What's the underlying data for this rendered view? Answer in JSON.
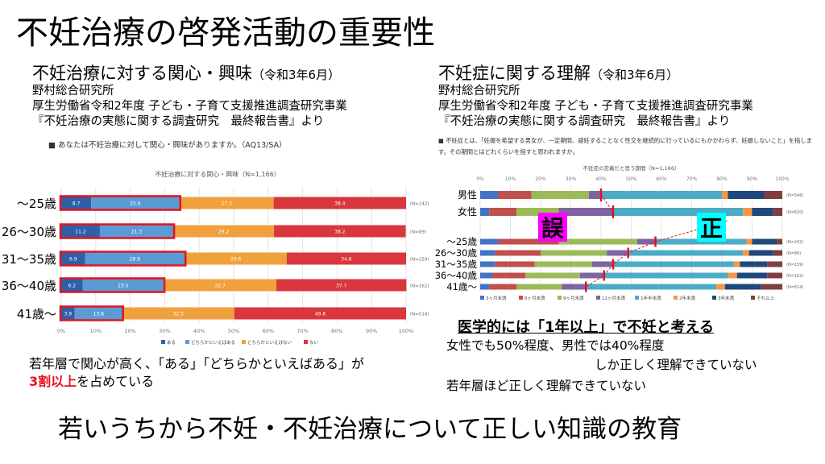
{
  "slide_title": "不妊治療の啓発活動の重要性",
  "left": {
    "title": "不妊治療に対する関心・興味",
    "title_date": "（令和3年6月）",
    "source": [
      "野村総合研究所",
      "厚生労働省令和2年度 子ども・子育て支援推進調査研究事業",
      "『不妊治療の実態に関する調査研究　最終報告書』より"
    ],
    "question": "■ あなたは不妊治療に対して関心・興味がありますか。（AQ13/SA）",
    "comment_pre": "若年層で関心が高く、「ある」「どちらかといえばある」が",
    "comment_red": "3割以上",
    "comment_post": "を占めている"
  },
  "right": {
    "title": "不妊症に関する理解",
    "title_date": "（令和3年6月）",
    "source": [
      "野村総合研究所",
      "厚生労働省令和2年度 子ども・子育て支援推進調査研究事業",
      "『不妊治療の実態に関する調査研究　最終報告書』より"
    ],
    "question_line1": "■ 不妊症とは、「妊娠を希望する男女が、一定期間、避妊することなく性交を継続的に行っているにもかかわらず、妊娠しないこと」を指しま",
    "question_line2": "す。その期間とはどれくらいを指すと思われますか。",
    "wrong_label": "誤",
    "correct_label": "正",
    "conclusion": "医学的には「1年以上」で不妊と考える",
    "text1": "女性でも50%程度、男性では40%程度",
    "text2": "しか正しく理解できていない",
    "text3": "若年層ほど正しく理解できていない"
  },
  "bottom_message": "若いうちから不妊・不妊治療について正しい知識の教育",
  "colors": {
    "interest": [
      "#2e5fa8",
      "#5b9bd5",
      "#f0a03c",
      "#d9363e"
    ],
    "period": [
      "#4472c4",
      "#c0504d",
      "#9bbb59",
      "#8064a2",
      "#4bacc6",
      "#f79646",
      "#1f497d",
      "#7f3f3f"
    ],
    "highlight_red": "#e6121d",
    "magenta": "#ff00ff",
    "cyan": "#00ffff"
  },
  "chart_data": [
    {
      "type": "bar",
      "stacked": true,
      "orientation": "horizontal",
      "title": "不妊治療に対する関心・興味（N=1,166）",
      "categories": [
        "～25歳",
        "26～30歳",
        "31～35歳",
        "36～40歳",
        "41歳～"
      ],
      "n_labels": [
        "(N=242)",
        "(N=89)",
        "(N=159)",
        "(N=162)",
        "(N=514)"
      ],
      "series": [
        {
          "name": "ある",
          "values": [
            8.7,
            11.2,
            6.9,
            6.2,
            3.9
          ]
        },
        {
          "name": "どちらかといえばある",
          "values": [
            25.6,
            21.3,
            28.9,
            23.5,
            13.8
          ]
        },
        {
          "name": "どちらかといえばない",
          "values": [
            27.3,
            29.2,
            29.6,
            32.7,
            32.5
          ]
        },
        {
          "name": "ない",
          "values": [
            38.4,
            38.2,
            34.6,
            37.7,
            49.8
          ]
        }
      ],
      "xlim": [
        0,
        100
      ],
      "xticks": [
        "0%",
        "10%",
        "20%",
        "30%",
        "40%",
        "50%",
        "60%",
        "70%",
        "80%",
        "90%",
        "100%"
      ],
      "legend": "bottom"
    },
    {
      "type": "bar",
      "stacked": true,
      "orientation": "horizontal",
      "title": "不妊症の定義だと思う期間（N=1,166）",
      "categories": [
        "男性",
        "女性",
        "～25歳",
        "26～30歳",
        "31～35歳",
        "36～40歳",
        "41歳～"
      ],
      "n_labels": [
        "(N=546)",
        "(N=620)",
        "(N=242)",
        "(N=89)",
        "(N=159)",
        "(N=162)",
        "(N=514)"
      ],
      "series": [
        {
          "name": "3ヶ月未満",
          "values": [
            6,
            3,
            6,
            5,
            5,
            4,
            3
          ]
        },
        {
          "name": "6ヶ月未満",
          "values": [
            11,
            9,
            20,
            15,
            13,
            11,
            9
          ]
        },
        {
          "name": "9ヶ月未満",
          "values": [
            19,
            14,
            26,
            22,
            19,
            18,
            15
          ]
        },
        {
          "name": "12ヶ月未満",
          "values": [
            4,
            18,
            6,
            7,
            7,
            8,
            8
          ]
        },
        {
          "name": "1年半未満",
          "values": [
            40,
            43,
            30,
            38,
            40,
            41,
            43
          ]
        },
        {
          "name": "2年未満",
          "values": [
            2,
            3,
            2,
            2,
            2,
            3,
            3
          ]
        },
        {
          "name": "3年未満",
          "values": [
            12,
            7,
            8,
            8,
            9,
            10,
            12
          ]
        },
        {
          "name": "それ以上",
          "values": [
            6,
            3,
            2,
            3,
            5,
            5,
            7
          ]
        }
      ],
      "xlim": [
        0,
        100
      ],
      "xticks": [
        "0%",
        "10%",
        "20%",
        "30%",
        "40%",
        "50%",
        "60%",
        "70%",
        "80%",
        "90%",
        "100%"
      ],
      "legend": "bottom"
    }
  ]
}
